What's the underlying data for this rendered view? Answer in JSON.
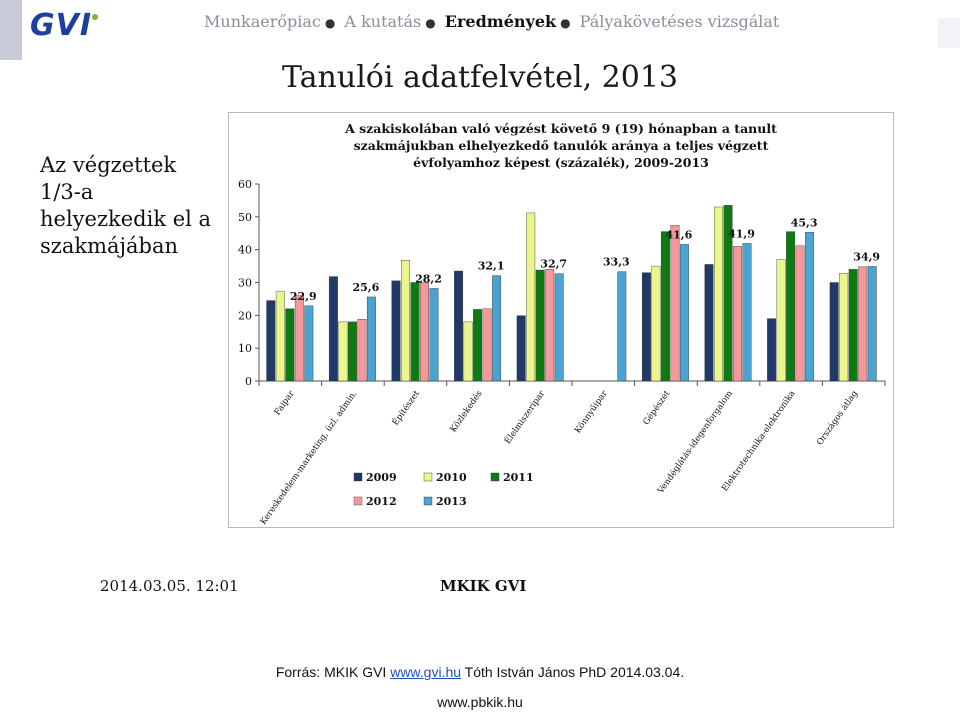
{
  "header": {
    "logo_text": "GVI",
    "nav": [
      "Munkaerőpiac",
      "A kutatás",
      "Eredmények",
      "Pályakövetéses vizsgálat"
    ],
    "nav_active_index": 2,
    "colors": {
      "logo": "#1f3f9e",
      "logo_dot": "#7ab82c"
    }
  },
  "slide_title": "Tanulói adatfelvétel, 2013",
  "side_text": "Az végzettek 1/3-a helyezkedik el a szakmájában",
  "footer": {
    "date": "2014.03.05. 12:01",
    "org": "MKIK GVI"
  },
  "source": {
    "prefix": "Forrás: MKIK GVI ",
    "link": "www.gvi.hu",
    "suffix": " Tóth István János PhD 2014.03.04."
  },
  "site": "www.pbkik.hu",
  "chart_data": {
    "type": "bar",
    "title_lines": [
      "A szakiskolában való végzést követő 9 (19) hónapban a tanult",
      "szakmájukban elhelyezkedő tanulók aránya a teljes végzett",
      "évfolyamhoz képest (százalék), 2009-2013"
    ],
    "categories": [
      "Faipar",
      "Kereskedelem-marketing, üzl. admin.",
      "Építészet",
      "Közlekedés",
      "Élelmiszeripar",
      "Könnyűipar",
      "Gépészet",
      "Vendéglátás-idegenforgalom",
      "Elektrotechnika-elektronika",
      "Országos átlag"
    ],
    "series": [
      {
        "name": "2009",
        "color": "#1f3a68",
        "values": [
          24.5,
          31.8,
          30.5,
          33.5,
          19.9,
          null,
          33.0,
          35.5,
          19.0,
          30.0
        ]
      },
      {
        "name": "2010",
        "color": "#eaf58c",
        "values": [
          27.2,
          18.0,
          36.8,
          18.0,
          51.2,
          null,
          35.0,
          53.0,
          37.0,
          32.8
        ]
      },
      {
        "name": "2011",
        "color": "#0f7a12",
        "values": [
          22.0,
          18.0,
          30.0,
          21.8,
          33.8,
          null,
          45.5,
          53.5,
          45.5,
          34.0
        ]
      },
      {
        "name": "2012",
        "color": "#f4989b",
        "values": [
          26.0,
          18.8,
          30.0,
          22.0,
          34.0,
          null,
          47.4,
          41.0,
          41.2,
          34.8
        ]
      },
      {
        "name": "2013",
        "color": "#4aa3d0",
        "values": [
          22.9,
          25.6,
          28.2,
          32.1,
          32.7,
          33.3,
          41.6,
          41.9,
          45.3,
          34.9
        ]
      }
    ],
    "data_labels": [
      "22,9",
      "25,6",
      "28,2",
      "32,1",
      "32,7",
      "33,3",
      "41,6",
      "41,9",
      "45,3",
      "34,9"
    ],
    "y_ticks": [
      "0",
      "10",
      "20",
      "30",
      "40",
      "50",
      "60"
    ],
    "ylim": [
      0,
      60
    ],
    "legend_position": "bottom",
    "grid": false
  }
}
